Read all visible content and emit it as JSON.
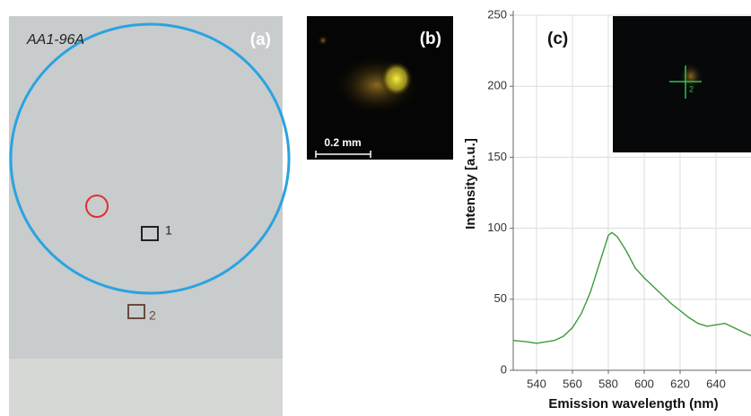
{
  "panels": {
    "a": {
      "label": "(a)",
      "sample": "AA1-96A",
      "mark1": "1",
      "mark2": "2"
    },
    "b": {
      "label": "(b)",
      "scale": "0.2 mm"
    },
    "c_inset": {
      "mark": "2"
    }
  },
  "chart_data": {
    "type": "line",
    "title": "(c)",
    "x_label": "Emission wavelength (nm)",
    "y_label": "Intensity [a.u.]",
    "x": [
      527,
      535,
      540,
      545,
      550,
      555,
      560,
      565,
      570,
      575,
      580,
      582,
      585,
      590,
      595,
      600,
      605,
      610,
      615,
      620,
      625,
      630,
      635,
      640,
      645,
      650,
      655,
      660
    ],
    "values": [
      21,
      20,
      19,
      20,
      21,
      24,
      30,
      40,
      55,
      75,
      95,
      97,
      94,
      84,
      72,
      65,
      59,
      53,
      47,
      42,
      37,
      33,
      31,
      32,
      33,
      30,
      27,
      24
    ],
    "color": "#3c9a3c",
    "xlim": [
      527,
      660
    ],
    "ylim": [
      0,
      250
    ],
    "xticks": [
      540,
      560,
      580,
      600,
      620,
      640
    ],
    "yticks": [
      0,
      50,
      100,
      150,
      200,
      250
    ],
    "grid": true
  }
}
